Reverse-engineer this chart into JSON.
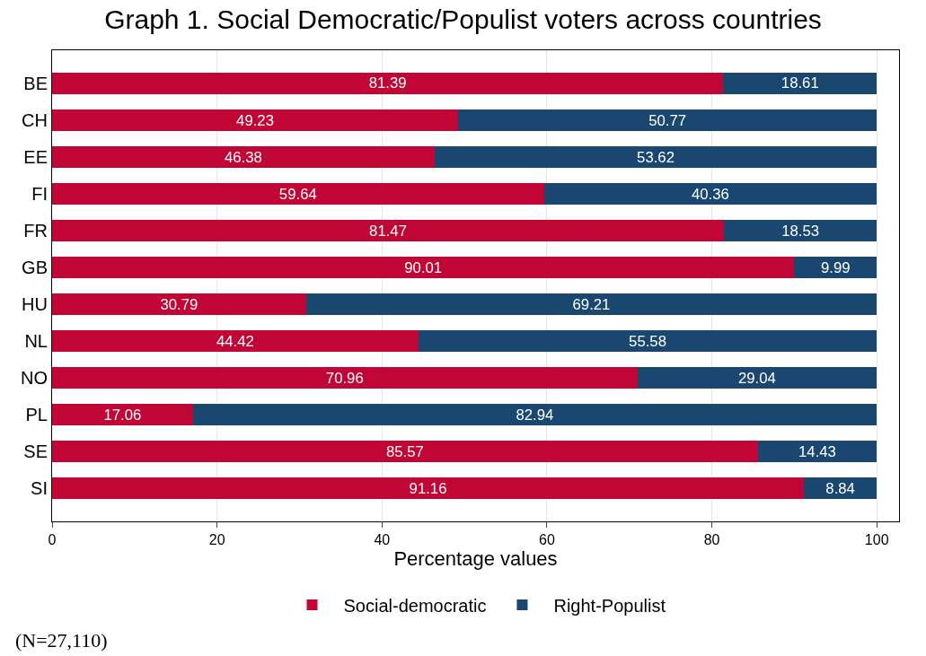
{
  "chart_data": {
    "type": "bar",
    "orientation": "horizontal",
    "stacked": true,
    "title": "Graph 1. Social Democratic/Populist voters across countries",
    "xlabel": "Percentage values",
    "categories": [
      "BE",
      "CH",
      "EE",
      "FI",
      "FR",
      "GB",
      "HU",
      "NL",
      "NO",
      "PL",
      "SE",
      "SI"
    ],
    "series": [
      {
        "name": "Social-democratic",
        "color": "#c10534",
        "values": [
          81.39,
          49.23,
          46.38,
          59.64,
          81.47,
          90.01,
          30.79,
          44.42,
          70.96,
          17.06,
          85.57,
          91.16
        ]
      },
      {
        "name": "Right-Populist",
        "color": "#1a476f",
        "values": [
          18.61,
          50.77,
          53.62,
          40.36,
          18.53,
          9.99,
          69.21,
          55.58,
          29.04,
          82.94,
          14.43,
          8.84
        ]
      }
    ],
    "xlim": [
      0,
      102.7
    ],
    "xticks": [
      0,
      20,
      40,
      60,
      80,
      100
    ],
    "grid": "x",
    "legend": "bottom",
    "data_labels": true,
    "annotations": [
      "(N=27,110)"
    ]
  }
}
